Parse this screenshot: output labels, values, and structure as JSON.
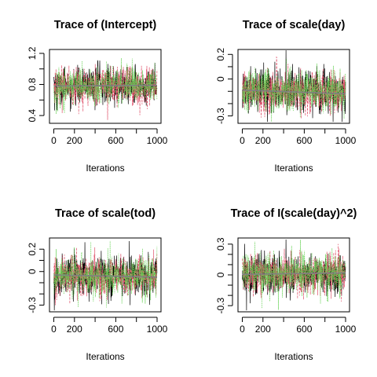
{
  "chart_data": [
    {
      "type": "line",
      "title": "Trace of (Intercept)",
      "xlabel": "Iterations",
      "ylabel": "",
      "xlim": [
        0,
        1000
      ],
      "ylim": [
        0.3,
        1.25
      ],
      "xticks": [
        0,
        200,
        600,
        1000
      ],
      "xticks_minor": [
        400,
        800
      ],
      "yticks": [
        0.4,
        0.8,
        1.2
      ],
      "yticks_minor": [
        0.6,
        1.0
      ],
      "n_iterations": 1000,
      "chain_mean": 0.78,
      "chain_sd": 0.12,
      "series": [
        {
          "color": "#000000"
        },
        {
          "color": "#df536b"
        },
        {
          "color": "#61d04f"
        }
      ],
      "trend_line": {
        "color": "#808080",
        "start": 0.78,
        "end": 0.79
      }
    },
    {
      "type": "line",
      "title": "Trace of scale(day)",
      "xlabel": "Iterations",
      "ylabel": "",
      "xlim": [
        0,
        1000
      ],
      "ylim": [
        -0.36,
        0.24
      ],
      "xticks": [
        0,
        200,
        600,
        1000
      ],
      "xticks_minor": [
        400,
        800
      ],
      "yticks": [
        -0.3,
        0.0,
        0.2
      ],
      "yticks_minor": [
        -0.2,
        -0.1,
        0.1
      ],
      "n_iterations": 1000,
      "chain_mean": -0.1,
      "chain_sd": 0.085,
      "series": [
        {
          "color": "#000000"
        },
        {
          "color": "#df536b"
        },
        {
          "color": "#61d04f"
        }
      ],
      "trend_line": {
        "color": "#808080",
        "start": -0.09,
        "end": -0.12
      }
    },
    {
      "type": "line",
      "title": "Trace of scale(tod)",
      "xlabel": "Iterations",
      "ylabel": "",
      "xlim": [
        0,
        1000
      ],
      "ylim": [
        -0.36,
        0.3
      ],
      "xticks": [
        0,
        200,
        600,
        1000
      ],
      "xticks_minor": [
        400,
        800
      ],
      "yticks": [
        -0.3,
        0.0,
        0.2
      ],
      "yticks_minor": [
        -0.2,
        -0.1,
        0.1
      ],
      "n_iterations": 1000,
      "chain_mean": -0.04,
      "chain_sd": 0.09,
      "series": [
        {
          "color": "#000000"
        },
        {
          "color": "#df536b"
        },
        {
          "color": "#61d04f"
        }
      ],
      "trend_line": {
        "color": "#808080",
        "start": -0.03,
        "end": -0.05
      }
    },
    {
      "type": "line",
      "title": "Trace of I(scale(day)^2)",
      "xlabel": "Iterations",
      "ylabel": "",
      "xlim": [
        0,
        1000
      ],
      "ylim": [
        -0.36,
        0.36
      ],
      "xticks": [
        0,
        200,
        600,
        1000
      ],
      "xticks_minor": [
        400,
        800
      ],
      "yticks": [
        -0.3,
        0.0,
        0.3
      ],
      "yticks_minor": [
        -0.2,
        -0.1,
        0.1,
        0.2
      ],
      "n_iterations": 1000,
      "chain_mean": 0.01,
      "chain_sd": 0.1,
      "series": [
        {
          "color": "#000000"
        },
        {
          "color": "#df536b"
        },
        {
          "color": "#61d04f"
        }
      ],
      "trend_line": {
        "color": "#808080",
        "start": 0.005,
        "end": 0.02
      }
    }
  ]
}
